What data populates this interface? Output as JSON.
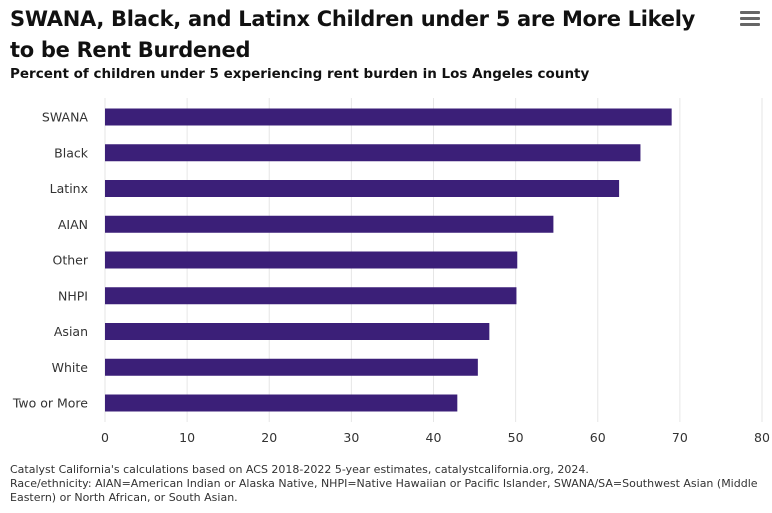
{
  "header": {
    "title": "SWANA, Black, and Latinx Children under 5 are More Likely to be Rent Burdened",
    "subtitle": "Percent of children under 5 experiencing rent burden in Los Angeles county",
    "menu_icon": "hamburger-menu-icon"
  },
  "footer": {
    "source": "Catalyst California's calculations based on ACS 2018-2022 5-year estimates, catalystcalifornia.org, 2024.",
    "note": "Race/ethnicity: AIAN=American Indian or Alaska Native, NHPI=Native Hawaiian or Pacific Islander, SWANA/SA=Southwest Asian (Middle Eastern) or North African, or South Asian."
  },
  "colors": {
    "bar": "#3b1f78",
    "grid": "#e6e6e6"
  },
  "chart_data": {
    "type": "bar",
    "orientation": "horizontal",
    "title": "SWANA, Black, and Latinx Children under 5 are More Likely to be Rent Burdened",
    "subtitle": "Percent of children under 5 experiencing rent burden in Los Angeles county",
    "xlabel": "",
    "ylabel": "",
    "categories": [
      "SWANA",
      "Black",
      "Latinx",
      "AIAN",
      "Other",
      "NHPI",
      "Asian",
      "White",
      "Two or More"
    ],
    "values": [
      69,
      65.2,
      62.6,
      54.6,
      50.2,
      50.1,
      46.8,
      45.4,
      42.9
    ],
    "xlim": [
      0,
      80
    ],
    "xticks": [
      "0",
      "10",
      "20",
      "30",
      "40",
      "50",
      "60",
      "70",
      "80"
    ],
    "grid": true,
    "legend": "none"
  }
}
